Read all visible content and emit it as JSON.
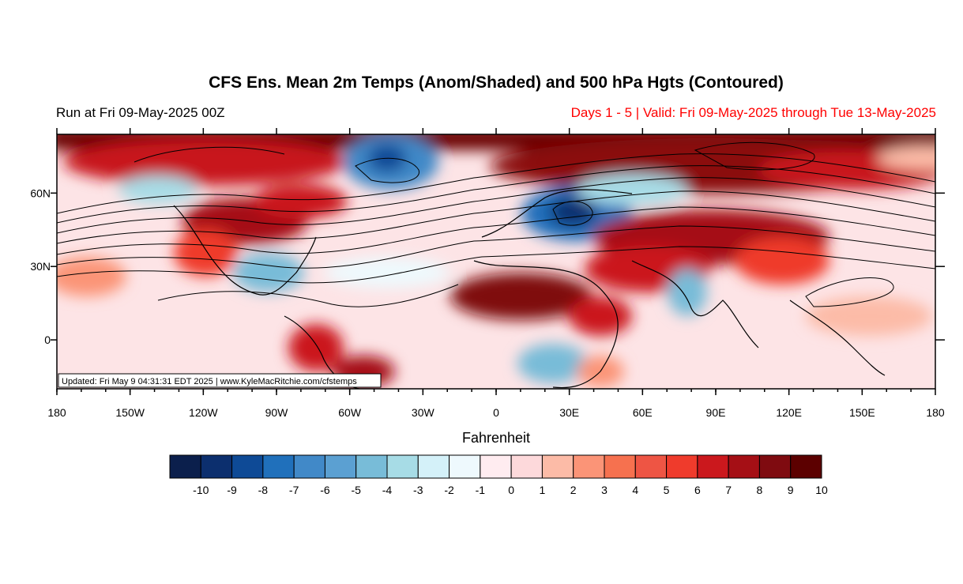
{
  "title": "CFS Ens. Mean 2m Temps (Anom/Shaded) and 500 hPa Hgts (Contoured)",
  "run_label": "Run at Fri 09-May-2025 00Z",
  "valid_label": "Days 1 - 5 | Valid: Fri 09-May-2025 through Tue 13-May-2025",
  "updated_label": "Updated: Fri May  9 04:31:31 EDT 2025 | www.KyleMacRitchie.com/cfstemps",
  "colors": {
    "valid_text": "#ff0000",
    "contour": "#000000"
  },
  "axes": {
    "x_ticks": [
      "180",
      "150W",
      "120W",
      "90W",
      "60W",
      "30W",
      "0",
      "30E",
      "60E",
      "90E",
      "120E",
      "150E",
      "180"
    ],
    "y_ticks": [
      "60N",
      "30N",
      "0"
    ]
  },
  "colorbar": {
    "title": "Fahrenheit",
    "labels": [
      "-10",
      "-9",
      "-8",
      "-7",
      "-6",
      "-5",
      "-4",
      "-3",
      "-2",
      "-1",
      "0",
      "1",
      "2",
      "3",
      "4",
      "5",
      "6",
      "7",
      "8",
      "9",
      "10"
    ],
    "colors": [
      "#0b1f4c",
      "#0c2f6e",
      "#0e4a96",
      "#2070bb",
      "#4189c8",
      "#5ba0d2",
      "#78bcd8",
      "#a7dce6",
      "#d4f1f9",
      "#eef9fd",
      "#ffecf0",
      "#fdd9db",
      "#fcbba7",
      "#fb9477",
      "#f6714f",
      "#ee5544",
      "#ef3b2c",
      "#cb181d",
      "#a50f15",
      "#7f0b10",
      "#5c0000"
    ]
  }
}
